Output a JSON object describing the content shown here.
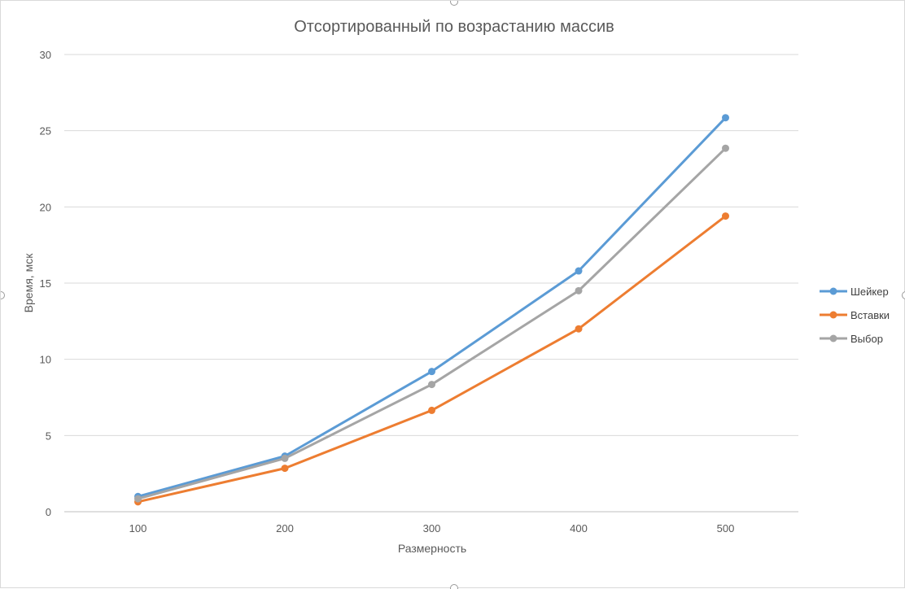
{
  "chart_data": {
    "type": "line",
    "title": "Отсортированный по возрастанию массив",
    "xlabel": "Размерность",
    "ylabel": "Время, мск",
    "categories": [
      "100",
      "200",
      "300",
      "400",
      "500"
    ],
    "ylim": [
      0,
      30
    ],
    "yticks": [
      "0",
      "5",
      "10",
      "15",
      "20",
      "25",
      "30"
    ],
    "grid": true,
    "legend_position": "right",
    "series": [
      {
        "name": "Шейкер",
        "color": "#5b9bd5",
        "values": [
          1.0,
          3.65,
          9.2,
          15.8,
          25.85
        ]
      },
      {
        "name": "Вставки",
        "color": "#ed7d31",
        "values": [
          0.65,
          2.85,
          6.65,
          12.0,
          19.4
        ]
      },
      {
        "name": "Выбор",
        "color": "#a5a5a5",
        "values": [
          0.85,
          3.5,
          8.35,
          14.5,
          23.85
        ]
      }
    ]
  }
}
